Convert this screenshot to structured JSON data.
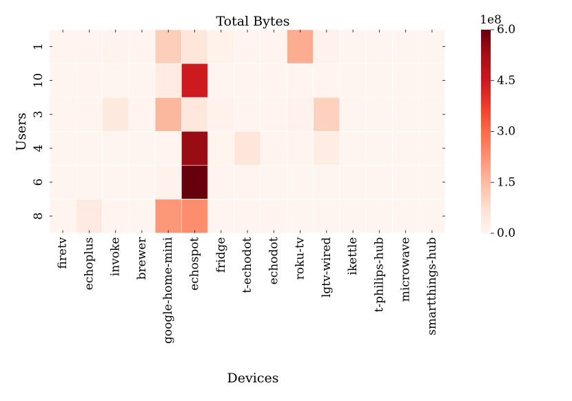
{
  "chart_data": {
    "type": "heatmap",
    "title": "Total Bytes",
    "xlabel": "Devices",
    "ylabel": "Users",
    "x_categories": [
      "firetv",
      "echoplus",
      "invoke",
      "brewer",
      "google-home-mini",
      "echospot",
      "fridge",
      "t-echodot",
      "echodot",
      "roku-tv",
      "lgtv-wired",
      "ikettle",
      "t-philips-hub",
      "microwave",
      "smartthings-hub"
    ],
    "y_categories": [
      "1",
      "10",
      "3",
      "4",
      "6",
      "8"
    ],
    "values": [
      [
        0.02,
        0.03,
        0.08,
        0.02,
        1.1,
        0.55,
        0.12,
        0.02,
        0.02,
        1.75,
        0.1,
        0.01,
        0.01,
        0.01,
        0.01
      ],
      [
        0.01,
        0.02,
        0.01,
        0.01,
        0.35,
        4.45,
        0.02,
        0.02,
        0.02,
        0.03,
        0.02,
        0.01,
        0.01,
        0.01,
        0.01
      ],
      [
        0.02,
        0.02,
        0.42,
        0.03,
        1.55,
        0.5,
        0.1,
        0.02,
        0.02,
        0.1,
        1.05,
        0.01,
        0.01,
        0.01,
        0.01
      ],
      [
        0.01,
        0.01,
        0.01,
        0.01,
        0.03,
        5.4,
        0.05,
        0.55,
        0.02,
        0.02,
        0.3,
        0.01,
        0.01,
        0.01,
        0.01
      ],
      [
        0.01,
        0.01,
        0.01,
        0.01,
        0.1,
        6.0,
        0.02,
        0.02,
        0.01,
        0.01,
        0.01,
        0.01,
        0.01,
        0.01,
        0.01
      ],
      [
        0.02,
        0.38,
        0.02,
        0.01,
        2.15,
        2.35,
        0.02,
        0.02,
        0.02,
        0.01,
        0.01,
        0.01,
        0.01,
        0.01,
        0.01
      ]
    ],
    "value_unit_multiplier": "1e8",
    "colorbar": {
      "min": 0.0,
      "max": 6.0,
      "ticks": [
        "0.0",
        "1.5",
        "3.0",
        "4.5",
        "6.0"
      ],
      "tick_values": [
        0.0,
        1.5,
        3.0,
        4.5,
        6.0
      ],
      "scale_label": "1e8",
      "colors": [
        "#fff5f0",
        "#fee0d2",
        "#fcbba1",
        "#fc9272",
        "#fb6a4a",
        "#ef3b2c",
        "#cb181d",
        "#a50f15",
        "#67000d"
      ]
    },
    "grid": false,
    "colormap": "Reds"
  }
}
